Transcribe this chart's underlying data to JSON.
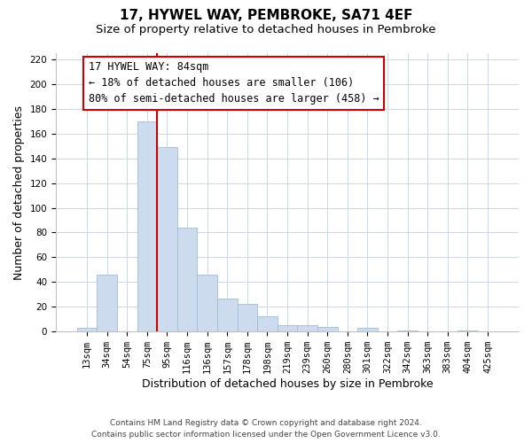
{
  "title": "17, HYWEL WAY, PEMBROKE, SA71 4EF",
  "subtitle": "Size of property relative to detached houses in Pembroke",
  "xlabel": "Distribution of detached houses by size in Pembroke",
  "ylabel": "Number of detached properties",
  "bar_labels": [
    "13sqm",
    "34sqm",
    "54sqm",
    "75sqm",
    "95sqm",
    "116sqm",
    "136sqm",
    "157sqm",
    "178sqm",
    "198sqm",
    "219sqm",
    "239sqm",
    "260sqm",
    "280sqm",
    "301sqm",
    "322sqm",
    "342sqm",
    "363sqm",
    "383sqm",
    "404sqm",
    "425sqm"
  ],
  "bar_values": [
    3,
    46,
    0,
    170,
    149,
    84,
    46,
    27,
    22,
    12,
    5,
    5,
    4,
    0,
    3,
    0,
    1,
    0,
    0,
    1,
    0
  ],
  "bar_color": "#ccdcee",
  "bar_edge_color": "#a0bcd8",
  "vline_color": "#cc0000",
  "ylim": [
    0,
    225
  ],
  "yticks": [
    0,
    20,
    40,
    60,
    80,
    100,
    120,
    140,
    160,
    180,
    200,
    220
  ],
  "annotation_title": "17 HYWEL WAY: 84sqm",
  "annotation_line1": "← 18% of detached houses are smaller (106)",
  "annotation_line2": "80% of semi-detached houses are larger (458) →",
  "footer1": "Contains HM Land Registry data © Crown copyright and database right 2024.",
  "footer2": "Contains public sector information licensed under the Open Government Licence v3.0.",
  "title_fontsize": 11,
  "subtitle_fontsize": 9.5,
  "tick_fontsize": 7.5,
  "ylabel_fontsize": 9,
  "xlabel_fontsize": 9,
  "ann_fontsize": 8.5,
  "footer_fontsize": 6.5
}
